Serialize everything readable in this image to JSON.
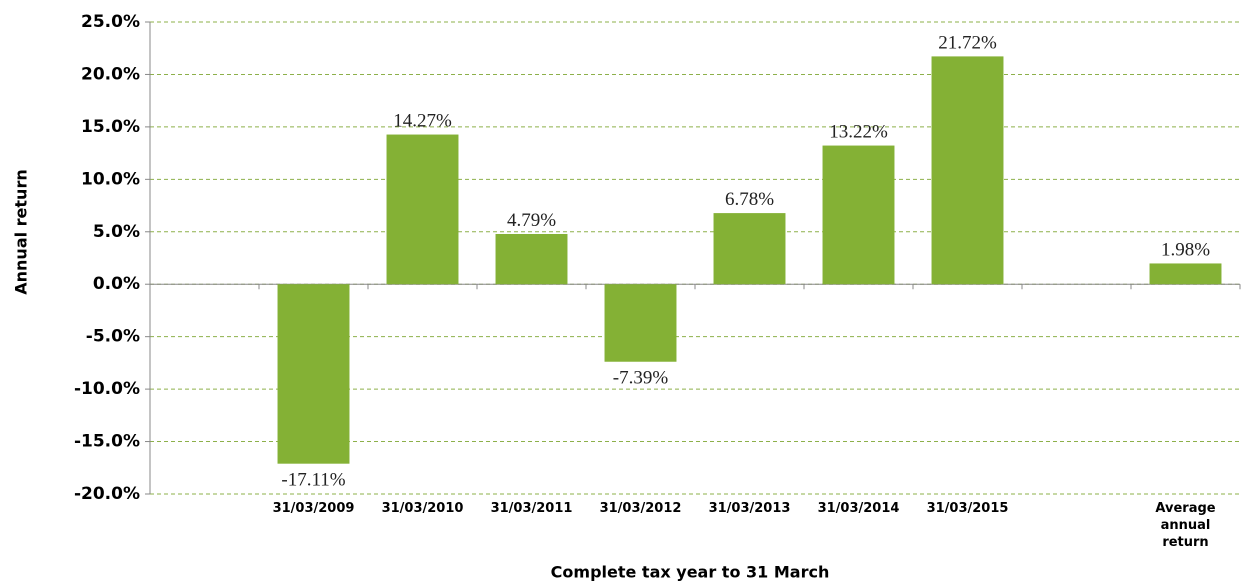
{
  "chart_data": {
    "type": "bar",
    "categories": [
      null,
      "31/03/2009",
      "31/03/2010",
      "31/03/2011",
      "31/03/2012",
      "31/03/2013",
      "31/03/2014",
      "31/03/2015",
      null,
      "Average annual return"
    ],
    "values": [
      null,
      -17.11,
      14.27,
      4.79,
      -7.39,
      6.78,
      13.22,
      21.72,
      null,
      1.98
    ],
    "value_labels": [
      null,
      "-17.11%",
      "14.27%",
      "4.79%",
      "-7.39%",
      "6.78%",
      "13.22%",
      "21.72%",
      null,
      "1.98%"
    ],
    "color": "#84b135",
    "xlabel": "Complete tax year to 31 March",
    "ylabel": "Annual return",
    "ylim": [
      -20,
      25
    ],
    "yticks": [
      {
        "value": -20,
        "label": "-20.0%"
      },
      {
        "value": -15,
        "label": "-15.0%"
      },
      {
        "value": -10,
        "label": "-10.0%"
      },
      {
        "value": -5,
        "label": "-5.0%"
      },
      {
        "value": 0,
        "label": "0.0%"
      },
      {
        "value": 5,
        "label": "5.0%"
      },
      {
        "value": 10,
        "label": "10.0%"
      },
      {
        "value": 15,
        "label": "15.0%"
      },
      {
        "value": 20,
        "label": "20.0%"
      },
      {
        "value": 25,
        "label": "25.0%"
      }
    ],
    "grid": true
  }
}
